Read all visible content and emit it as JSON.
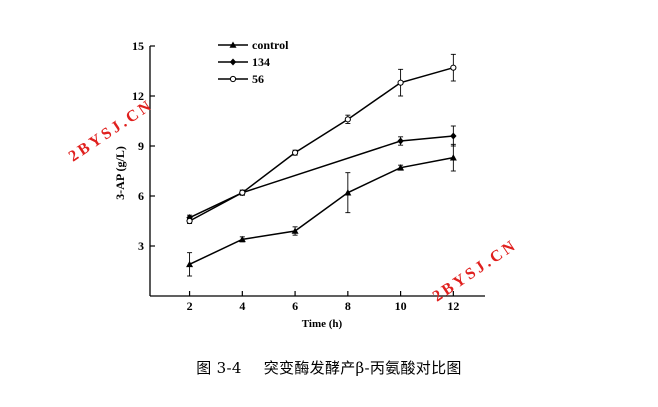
{
  "chart_data": {
    "type": "line",
    "xlabel": "Time (h)",
    "ylabel": "3-AP (g/L)",
    "xlim": [
      0.5,
      13.2
    ],
    "ylim": [
      0,
      15
    ],
    "xticks": [
      2,
      4,
      6,
      8,
      10,
      12
    ],
    "yticks": [
      3,
      6,
      9,
      12,
      15
    ],
    "x": [
      2,
      4,
      6,
      8,
      10,
      12
    ],
    "series": [
      {
        "name": "control",
        "marker": "triangle",
        "values": [
          1.9,
          3.4,
          3.9,
          6.2,
          7.7,
          8.3
        ],
        "err": [
          0.7,
          0.15,
          0.25,
          1.2,
          0.15,
          0.8
        ]
      },
      {
        "name": "134",
        "marker": "diamond",
        "values": [
          4.7,
          6.2,
          null,
          null,
          9.3,
          9.6
        ],
        "err": [
          0.15,
          0.15,
          null,
          null,
          0.25,
          0.6
        ]
      },
      {
        "name": "56",
        "marker": "open-circle",
        "values": [
          4.5,
          6.2,
          8.6,
          10.6,
          12.8,
          13.7
        ],
        "err": [
          0.15,
          0.15,
          0.15,
          0.25,
          0.8,
          0.8
        ]
      }
    ],
    "legend_position": "top-left",
    "grid": false
  },
  "caption": {
    "number": "图 3-4",
    "text": "突变酶发酵产β-丙氨酸对比图"
  },
  "watermarks": [
    "2BYSJ.CN",
    "2BYSJ.CN"
  ],
  "colors": {
    "line": "#000000",
    "watermark": "#e0201e"
  }
}
